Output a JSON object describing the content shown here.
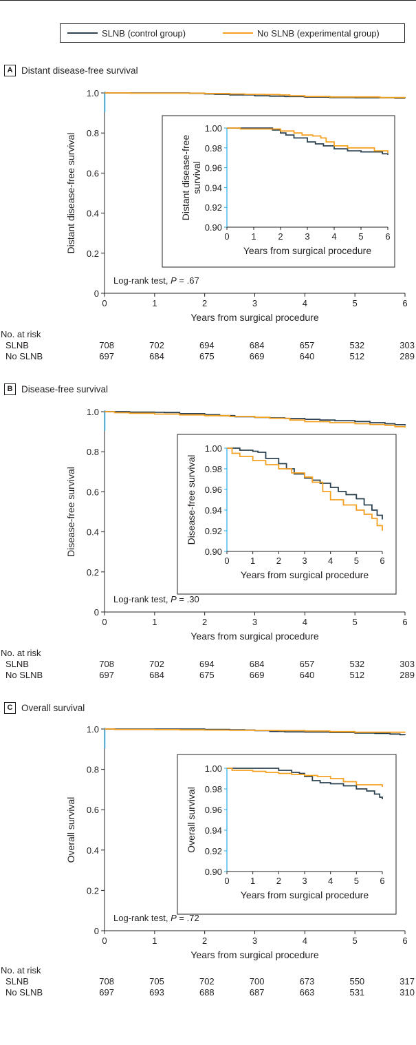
{
  "legend": [
    {
      "label": "SLNB (control group)",
      "color": "#2b4150"
    },
    {
      "label": "No SLNB (experimental group)",
      "color": "#f4a020"
    }
  ],
  "colors": {
    "slnb": "#2b4150",
    "no_slnb": "#f4a020",
    "inset_axis": "#29abe2",
    "text": "#231f20"
  },
  "risk_header": "No. at risk",
  "chart_data": [
    {
      "type": "line",
      "panel": "A",
      "title": "Distant disease-free survival",
      "xlabel": "Years from surgical procedure",
      "ylabel": "Distant disease-free survival",
      "xlim": [
        0,
        6
      ],
      "ylim": [
        0,
        1.0
      ],
      "xticks": [
        "0",
        "1",
        "2",
        "3",
        "4",
        "5",
        "6"
      ],
      "yticks": [
        "0",
        "0.2",
        "0.4",
        "0.6",
        "0.8",
        "1.0"
      ],
      "annotation": {
        "prefix": "Log-rank test, ",
        "p": "P",
        "suffix": " = .67"
      },
      "series": [
        {
          "name": "SLNB",
          "x": [
            0,
            0.5,
            1.0,
            1.5,
            1.7,
            2.0,
            2.2,
            2.5,
            3.0,
            3.3,
            3.6,
            4.0,
            4.5,
            5.0,
            5.5,
            5.8,
            6.0
          ],
          "y": [
            1.0,
            1.0,
            1.0,
            1.0,
            0.998,
            0.995,
            0.993,
            0.99,
            0.986,
            0.984,
            0.982,
            0.979,
            0.977,
            0.976,
            0.976,
            0.974,
            0.973
          ]
        },
        {
          "name": "No SLNB",
          "x": [
            0,
            0.5,
            1.0,
            1.5,
            2.0,
            2.5,
            2.8,
            3.2,
            3.5,
            3.7,
            4.0,
            4.5,
            5.0,
            5.5,
            6.0
          ],
          "y": [
            1.0,
            0.999,
            0.999,
            0.999,
            0.997,
            0.995,
            0.993,
            0.992,
            0.99,
            0.986,
            0.982,
            0.98,
            0.98,
            0.977,
            0.975
          ]
        }
      ],
      "inset": {
        "xlabel": "Years from surgical procedure",
        "ylabel": "Distant disease-free survival",
        "ylabel_lines": [
          "Distant disease-free",
          "survival"
        ],
        "xlim": [
          0,
          6
        ],
        "ylim": [
          0.9,
          1.0
        ],
        "xticks": [
          "0",
          "1",
          "2",
          "3",
          "4",
          "5",
          "6"
        ],
        "yticks": [
          "0.90",
          "0.92",
          "0.94",
          "0.96",
          "0.98",
          "1.00"
        ]
      },
      "at_risk": {
        "SLNB": [
          "708",
          "702",
          "694",
          "684",
          "657",
          "532",
          "303"
        ],
        "No SLNB": [
          "697",
          "684",
          "675",
          "669",
          "640",
          "512",
          "289"
        ]
      }
    },
    {
      "type": "line",
      "panel": "B",
      "title": "Disease-free survival",
      "xlabel": "Years from surgical procedure",
      "ylabel": "Disease-free survival",
      "xlim": [
        0,
        6
      ],
      "ylim": [
        0,
        1.0
      ],
      "xticks": [
        "0",
        "1",
        "2",
        "3",
        "4",
        "5",
        "6"
      ],
      "yticks": [
        "0",
        "0.2",
        "0.4",
        "0.6",
        "0.8",
        "1.0"
      ],
      "annotation": {
        "prefix": "Log-rank test, ",
        "p": "P",
        "suffix": " = .30"
      },
      "series": [
        {
          "name": "SLNB",
          "x": [
            0,
            0.5,
            1.0,
            1.2,
            1.5,
            2.0,
            2.3,
            2.6,
            3.0,
            3.3,
            3.6,
            4.0,
            4.3,
            4.6,
            5.0,
            5.3,
            5.6,
            5.8,
            6.0
          ],
          "y": [
            1.0,
            0.998,
            0.997,
            0.996,
            0.99,
            0.985,
            0.98,
            0.975,
            0.971,
            0.969,
            0.966,
            0.962,
            0.958,
            0.955,
            0.951,
            0.945,
            0.94,
            0.935,
            0.931
          ]
        },
        {
          "name": "No SLNB",
          "x": [
            0,
            0.2,
            0.5,
            1.0,
            1.5,
            2.0,
            2.5,
            3.0,
            3.3,
            3.7,
            4.0,
            4.5,
            5.0,
            5.3,
            5.6,
            5.8,
            6.0
          ],
          "y": [
            1.0,
            0.995,
            0.992,
            0.988,
            0.984,
            0.98,
            0.976,
            0.972,
            0.967,
            0.958,
            0.95,
            0.945,
            0.94,
            0.936,
            0.932,
            0.925,
            0.92
          ]
        }
      ],
      "inset": {
        "xlabel": "Years from surgical procedure",
        "ylabel": "Disease-free survival",
        "ylabel_lines": [
          "Disease-free survival"
        ],
        "xlim": [
          0,
          6
        ],
        "ylim": [
          0.9,
          1.0
        ],
        "xticks": [
          "0",
          "1",
          "2",
          "3",
          "4",
          "5",
          "6"
        ],
        "yticks": [
          "0.90",
          "0.92",
          "0.94",
          "0.96",
          "0.98",
          "1.00"
        ]
      },
      "at_risk": {
        "SLNB": [
          "708",
          "702",
          "694",
          "684",
          "657",
          "532",
          "303"
        ],
        "No SLNB": [
          "697",
          "684",
          "675",
          "669",
          "640",
          "512",
          "289"
        ]
      }
    },
    {
      "type": "line",
      "panel": "C",
      "title": "Overall survival",
      "xlabel": "Years from surgical procedure",
      "ylabel": "Overall survival",
      "xlim": [
        0,
        6
      ],
      "ylim": [
        0,
        1.0
      ],
      "xticks": [
        "0",
        "1",
        "2",
        "3",
        "4",
        "5",
        "6"
      ],
      "yticks": [
        "0",
        "0.2",
        "0.4",
        "0.6",
        "0.8",
        "1.0"
      ],
      "annotation": {
        "prefix": "Log-rank test, ",
        "p": "P",
        "suffix": " = .72"
      },
      "series": [
        {
          "name": "SLNB",
          "x": [
            0,
            0.5,
            1.0,
            1.5,
            2.0,
            2.5,
            2.8,
            3.0,
            3.3,
            3.6,
            4.0,
            4.5,
            5.0,
            5.4,
            5.7,
            5.9,
            6.0
          ],
          "y": [
            1.0,
            1.0,
            1.0,
            1.0,
            0.998,
            0.996,
            0.995,
            0.992,
            0.988,
            0.986,
            0.985,
            0.983,
            0.98,
            0.978,
            0.975,
            0.972,
            0.97
          ]
        },
        {
          "name": "No SLNB",
          "x": [
            0,
            0.2,
            0.5,
            1.0,
            1.5,
            2.0,
            2.5,
            3.0,
            3.5,
            4.0,
            4.5,
            5.0,
            5.5,
            6.0
          ],
          "y": [
            1.0,
            0.998,
            0.998,
            0.997,
            0.996,
            0.995,
            0.994,
            0.993,
            0.992,
            0.99,
            0.987,
            0.984,
            0.984,
            0.982
          ]
        }
      ],
      "inset": {
        "xlabel": "Years from surgical procedure",
        "ylabel": "Overall survival",
        "ylabel_lines": [
          "Overall survival"
        ],
        "xlim": [
          0,
          6
        ],
        "ylim": [
          0.9,
          1.0
        ],
        "xticks": [
          "0",
          "1",
          "2",
          "3",
          "4",
          "5",
          "6"
        ],
        "yticks": [
          "0.90",
          "0.92",
          "0.94",
          "0.96",
          "0.98",
          "1.00"
        ]
      },
      "at_risk": {
        "SLNB": [
          "708",
          "705",
          "702",
          "700",
          "673",
          "550",
          "317"
        ],
        "No SLNB": [
          "697",
          "693",
          "688",
          "687",
          "663",
          "531",
          "310"
        ]
      }
    }
  ]
}
